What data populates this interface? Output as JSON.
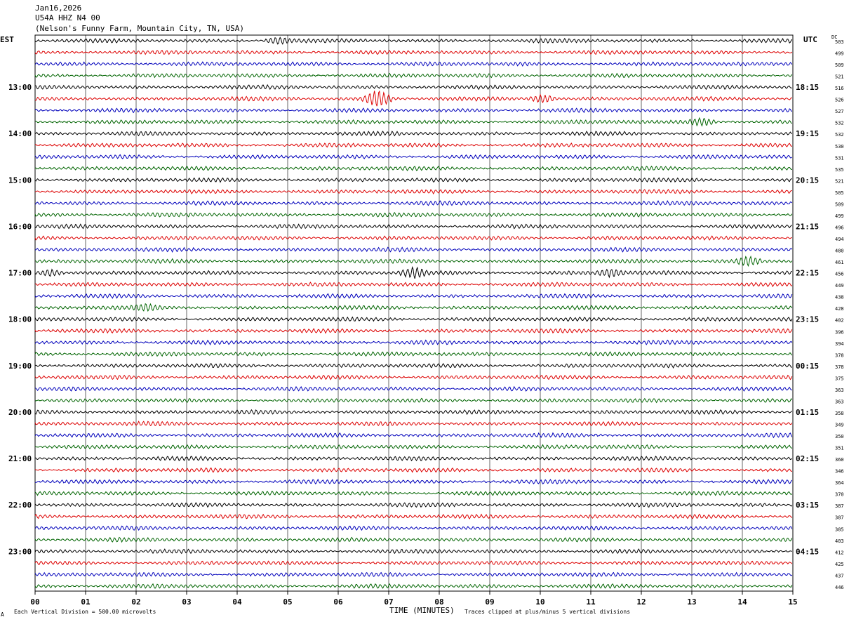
{
  "header": {
    "date": "Jan16,2026",
    "station": "U54A HHZ N4 00",
    "location": "(Nelson's Funny Farm, Mountain City, TN, USA)"
  },
  "tz_left": "EST",
  "tz_right": "UTC",
  "dc_label": "DC",
  "footer": {
    "scale_note": "Each Vertical Division =   500.00 microvolts",
    "clip_note": "Traces clipped at plus/minus 5 vertical divisions",
    "corner_mark": "A"
  },
  "colors": {
    "trace_cycle": [
      "#000000",
      "#dd0000",
      "#0000bb",
      "#006400"
    ],
    "grid": "#000000"
  },
  "chart_data": {
    "type": "line",
    "xlabel": "TIME (MINUTES)",
    "x_ticks": [
      "00",
      "01",
      "02",
      "03",
      "04",
      "05",
      "06",
      "07",
      "08",
      "09",
      "10",
      "11",
      "12",
      "13",
      "14",
      "15"
    ],
    "xlim": [
      0,
      15
    ],
    "rows_per_hour": 4,
    "left_hour_labels": [
      "13:00",
      "14:00",
      "15:00",
      "16:00",
      "17:00",
      "18:00",
      "19:00",
      "20:00",
      "21:00",
      "22:00",
      "23:00"
    ],
    "right_hour_labels": [
      "18:15",
      "19:15",
      "20:15",
      "21:15",
      "22:15",
      "23:15",
      "00:15",
      "01:15",
      "02:15",
      "03:15",
      "04:15"
    ],
    "dc_offsets": [
      503,
      499,
      509,
      521,
      516,
      526,
      527,
      532,
      532,
      530,
      531,
      535,
      521,
      505,
      509,
      499,
      496,
      494,
      480,
      461,
      456,
      449,
      438,
      428,
      402,
      396,
      394,
      378,
      378,
      375,
      363,
      363,
      358,
      349,
      350,
      351,
      360,
      346,
      364,
      370,
      387,
      387,
      385,
      403,
      412,
      425,
      437,
      446
    ],
    "events": [
      {
        "row": 0,
        "minute": 4.8,
        "amp": 2.0
      },
      {
        "row": 5,
        "minute": 6.78,
        "amp": 5.0
      },
      {
        "row": 5,
        "minute": 10.05,
        "amp": 2.2
      },
      {
        "row": 7,
        "minute": 13.2,
        "amp": 2.0
      },
      {
        "row": 19,
        "minute": 14.1,
        "amp": 2.5
      },
      {
        "row": 20,
        "minute": 7.5,
        "amp": 3.0
      },
      {
        "row": 20,
        "minute": 0.3,
        "amp": 2.0
      },
      {
        "row": 20,
        "minute": 11.4,
        "amp": 2.0
      },
      {
        "row": 23,
        "minute": 2.2,
        "amp": 1.4
      }
    ],
    "grid": true
  }
}
